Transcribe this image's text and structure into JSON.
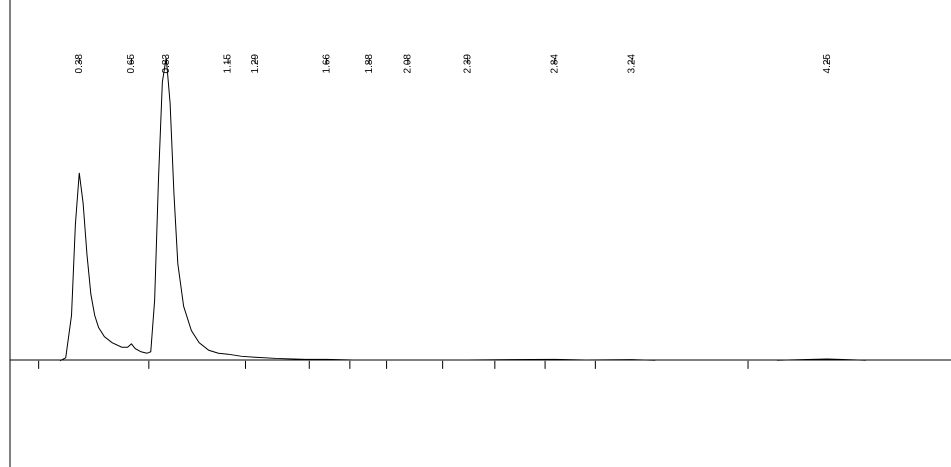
{
  "chart_data": {
    "type": "line",
    "x": [
      0.28,
      0.31,
      0.34,
      0.36,
      0.38,
      0.4,
      0.42,
      0.44,
      0.46,
      0.48,
      0.51,
      0.55,
      0.6,
      0.63,
      0.65,
      0.67,
      0.7,
      0.73,
      0.75,
      0.77,
      0.79,
      0.81,
      0.83,
      0.85,
      0.87,
      0.89,
      0.92,
      0.96,
      1.0,
      1.05,
      1.1,
      1.15,
      1.22,
      1.29,
      1.4,
      1.55,
      1.66,
      1.8,
      2.0,
      2.39,
      2.84,
      3.0,
      3.24,
      3.36,
      3.7,
      3.99,
      4.25,
      4.45
    ],
    "series": [
      {
        "color": "#000000",
        "values": [
          0,
          1,
          15,
          45,
          62,
          52,
          35,
          22,
          15,
          11,
          8,
          6,
          4.5,
          4.5,
          5.6,
          4,
          3,
          2.5,
          3,
          20,
          60,
          92,
          100,
          85,
          55,
          32,
          18,
          10,
          6,
          3.5,
          2.5,
          2.2,
          1.5,
          1.2,
          0.8,
          0.5,
          0.5,
          0.3,
          0.3,
          0.3,
          0.5,
          0.3,
          0.4,
          0.2,
          null,
          0.2,
          0.6,
          0.2
        ]
      }
    ],
    "peak_labels": [
      0.38,
      0.65,
      0.83,
      1.15,
      1.29,
      1.66,
      1.88,
      2.08,
      2.39,
      2.84,
      3.24,
      4.25
    ],
    "xticks": [
      0.17,
      0.74,
      1.24,
      1.57,
      1.78,
      1.97,
      2.26,
      2.53,
      2.79,
      3.05,
      3.84
    ],
    "xlim": [
      -0.03,
      4.89
    ],
    "ylim": [
      -35,
      119
    ]
  }
}
